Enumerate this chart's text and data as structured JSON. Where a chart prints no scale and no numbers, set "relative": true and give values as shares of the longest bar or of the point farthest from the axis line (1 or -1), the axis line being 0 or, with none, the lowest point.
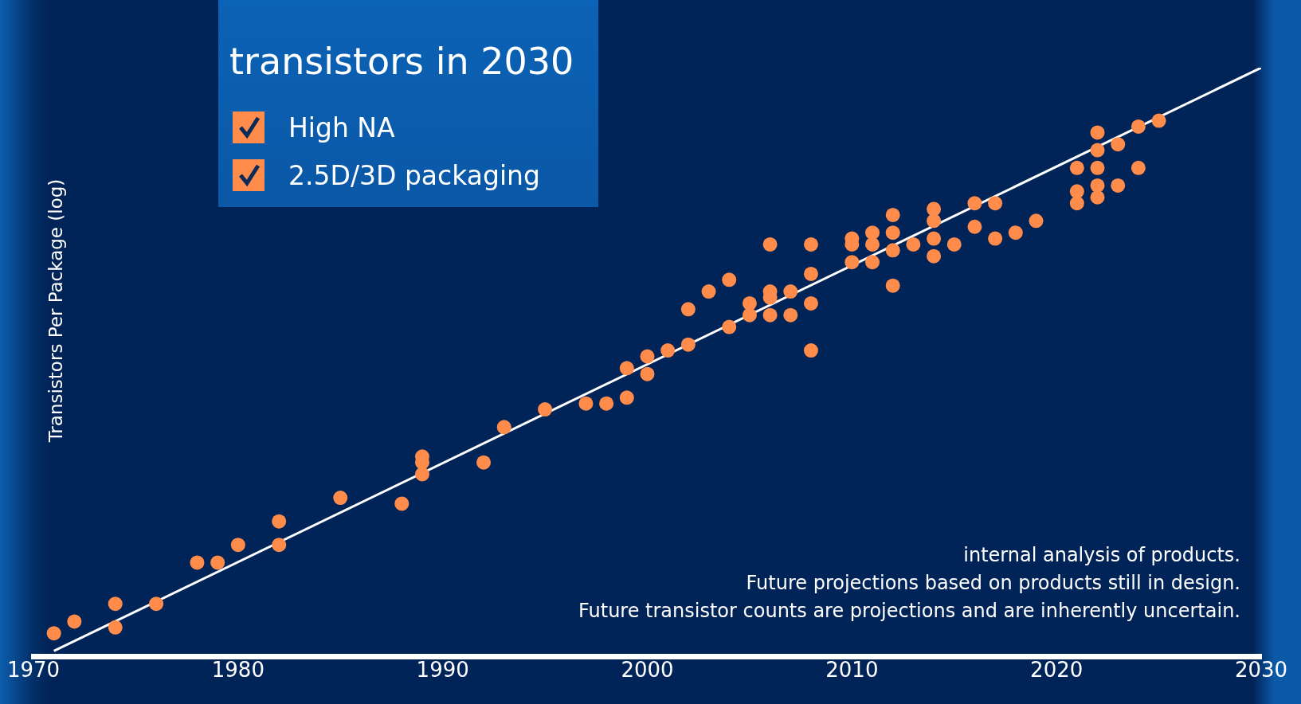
{
  "chart_data": {
    "type": "scatter",
    "relative": true,
    "title": "transistors in 2030",
    "ylabel": "Transistors Per Package (log)",
    "annotations": [
      "High NA",
      "2.5D/3D packaging",
      "internal analysis of products.",
      "Future projections based on products still in design.",
      "Future transistor counts are projections and are inherently uncertain."
    ],
    "xlim": [
      1970,
      2030
    ],
    "xticks": [
      1970,
      1980,
      1990,
      2000,
      2010,
      2020,
      2030
    ],
    "grid": false,
    "legend": false,
    "marker": "circle",
    "series": [
      {
        "color": "#ff8c4a",
        "x": [
          1971,
          1972,
          1974,
          1974,
          1976,
          1978,
          1979,
          1980,
          1982,
          1982,
          1985,
          1988,
          1989,
          1989,
          1989,
          1992,
          1993,
          1995,
          1997,
          1998,
          1999,
          1999,
          2000,
          2000,
          2001,
          2002,
          2002,
          2003,
          2004,
          2004,
          2005,
          2005,
          2006,
          2006,
          2006,
          2006,
          2007,
          2007,
          2008,
          2008,
          2008,
          2008,
          2010,
          2010,
          2010,
          2011,
          2011,
          2011,
          2012,
          2012,
          2012,
          2012,
          2013,
          2014,
          2014,
          2014,
          2014,
          2015,
          2016,
          2016,
          2017,
          2017,
          2018,
          2019,
          2021,
          2021,
          2021,
          2022,
          2022,
          2022,
          2022,
          2022,
          2023,
          2023,
          2024,
          2024,
          2025
        ],
        "values": [
          0.04,
          0.06,
          0.09,
          0.05,
          0.09,
          0.16,
          0.16,
          0.19,
          0.23,
          0.19,
          0.27,
          0.26,
          0.34,
          0.33,
          0.31,
          0.33,
          0.39,
          0.42,
          0.43,
          0.43,
          0.44,
          0.49,
          0.48,
          0.51,
          0.52,
          0.59,
          0.53,
          0.62,
          0.64,
          0.56,
          0.6,
          0.58,
          0.61,
          0.7,
          0.62,
          0.58,
          0.62,
          0.58,
          0.7,
          0.65,
          0.6,
          0.52,
          0.7,
          0.71,
          0.67,
          0.72,
          0.67,
          0.7,
          0.75,
          0.72,
          0.69,
          0.63,
          0.7,
          0.74,
          0.76,
          0.71,
          0.68,
          0.7,
          0.77,
          0.73,
          0.77,
          0.71,
          0.72,
          0.74,
          0.83,
          0.79,
          0.77,
          0.89,
          0.86,
          0.83,
          0.8,
          0.78,
          0.8,
          0.87,
          0.83,
          0.9,
          0.91
        ]
      },
      {
        "type": "line",
        "marker": "none",
        "color": "#ffffff",
        "x": [
          1971,
          2030
        ],
        "values": [
          0.01,
          1
        ]
      }
    ]
  }
}
